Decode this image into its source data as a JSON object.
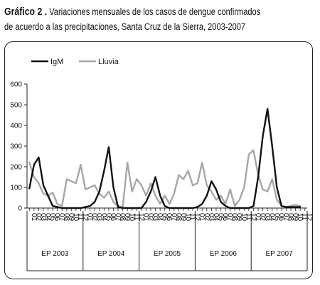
{
  "title": {
    "lead": "Gráfico 2 .",
    "line1_rest": " Variaciones mensuales de los casos de dengue confirmados",
    "line2": "de acuerdo a las precipitaciones, Santa Cruz de la Sierra, 2003-2007"
  },
  "chart_data": {
    "type": "line",
    "title": "",
    "xlabel": "",
    "ylabel": "",
    "ylim": [
      0,
      600
    ],
    "yticks": [
      0,
      100,
      200,
      300,
      400,
      500,
      600
    ],
    "grid": false,
    "legend_position": "top-left",
    "groups": [
      "EP 2003",
      "EP 2004",
      "EP 2005",
      "EP 2006",
      "EP 2007"
    ],
    "months_per_group": 12,
    "month_tick_labels": [
      "01",
      "02",
      "03",
      "04",
      "05",
      "06",
      "07",
      "08",
      "09",
      "10",
      "11",
      "12"
    ],
    "series": [
      {
        "name": "IgM",
        "color": "#111111",
        "values": [
          95,
          210,
          245,
          110,
          60,
          10,
          5,
          0,
          0,
          0,
          0,
          0,
          5,
          10,
          30,
          80,
          180,
          295,
          100,
          5,
          0,
          0,
          0,
          0,
          0,
          30,
          80,
          150,
          60,
          10,
          0,
          0,
          0,
          0,
          0,
          0,
          5,
          20,
          60,
          130,
          90,
          30,
          10,
          0,
          0,
          0,
          0,
          0,
          10,
          150,
          350,
          480,
          300,
          100,
          10,
          5,
          5,
          5,
          5
        ]
      },
      {
        "name": "Lluvia",
        "color": "#a6a6a6",
        "values": [
          220,
          150,
          120,
          70,
          60,
          75,
          20,
          10,
          140,
          130,
          120,
          210,
          90,
          100,
          110,
          70,
          50,
          80,
          30,
          10,
          5,
          220,
          80,
          140,
          110,
          60,
          120,
          60,
          20,
          60,
          20,
          70,
          160,
          140,
          180,
          110,
          120,
          220,
          110,
          80,
          40,
          60,
          20,
          90,
          10,
          40,
          100,
          260,
          280,
          160,
          90,
          80,
          140,
          40,
          10,
          5,
          10,
          15,
          10
        ]
      }
    ]
  }
}
